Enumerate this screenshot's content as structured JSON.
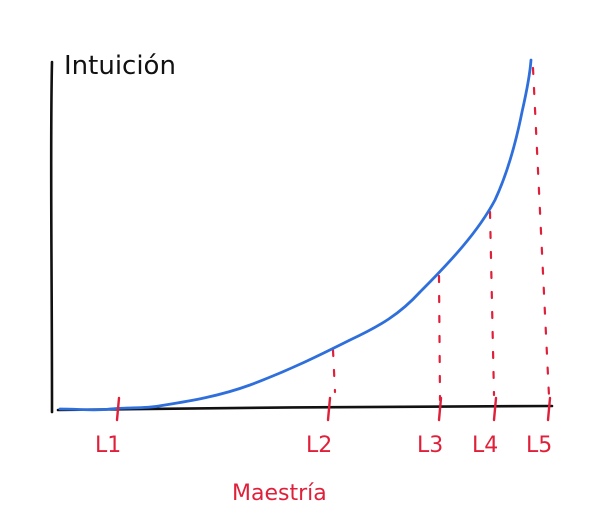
{
  "chart_data": {
    "type": "line",
    "title": "",
    "ylabel": "Intuición",
    "xlabel": "Maestría",
    "x_ticks": [
      "L1",
      "L2",
      "L3",
      "L4",
      "L5"
    ],
    "series": [
      {
        "values_desc": "exponential-like curve rising sharply near L5",
        "points": [
          {
            "x": 0,
            "y": 0
          },
          {
            "x": 1,
            "y": 0.01
          },
          {
            "x": 2,
            "y": 0.04
          },
          {
            "x": 3,
            "y": 0.12
          },
          {
            "x": 4,
            "y": 0.22
          },
          {
            "x": 5,
            "y": 0.36
          },
          {
            "x": 6,
            "y": 0.6
          },
          {
            "x": 7,
            "y": 1.0
          }
        ]
      }
    ],
    "grid": false,
    "legend": "none"
  },
  "colors": {
    "axis": "#111111",
    "curve": "#2f6fdc",
    "markers": "#e0203a"
  }
}
